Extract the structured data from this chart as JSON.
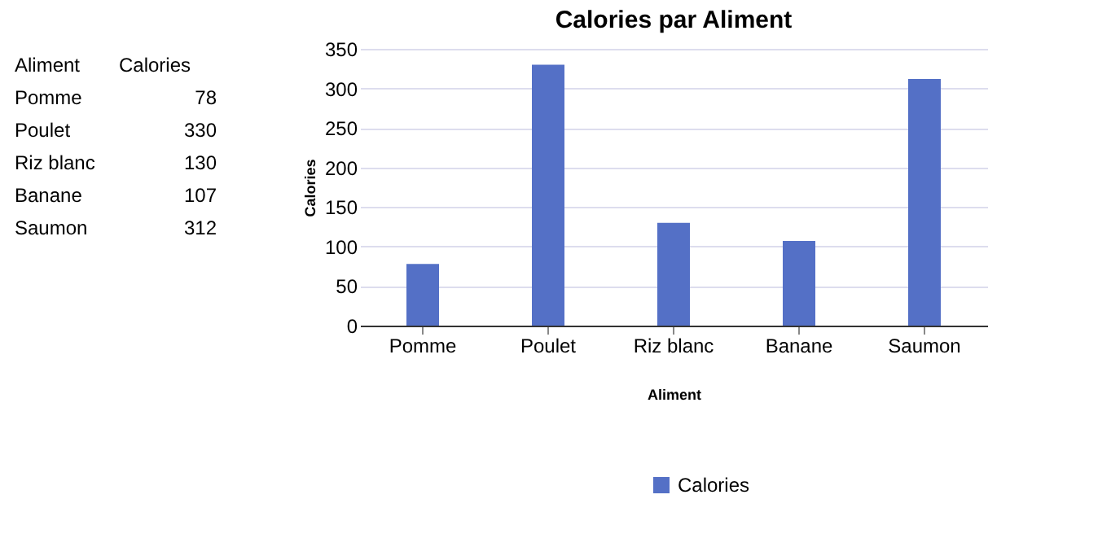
{
  "chart_data": [
    {
      "type": "other",
      "xlabel": "Aliment",
      "categories": [
        "Pomme",
        "Poulet",
        "Riz blanc",
        "Banane",
        "Saumon"
      ],
      "series": [
        {
          "name": "Calories",
          "values": [
            78,
            330,
            130,
            107,
            312
          ]
        }
      ],
      "data_labels": true
    },
    {
      "type": "bar",
      "title": "Calories par Aliment",
      "xlabel": "Aliment",
      "ylabel": "Calories",
      "categories": [
        "Pomme",
        "Poulet",
        "Riz blanc",
        "Banane",
        "Saumon"
      ],
      "series": [
        {
          "name": "Calories",
          "color": "#5470c6",
          "values": [
            78,
            330,
            130,
            107,
            312
          ]
        }
      ],
      "ylim": [
        0,
        350
      ],
      "yticks": [
        0,
        50,
        100,
        150,
        200,
        250,
        300,
        350
      ],
      "grid": "y",
      "legend": "bottom"
    }
  ]
}
